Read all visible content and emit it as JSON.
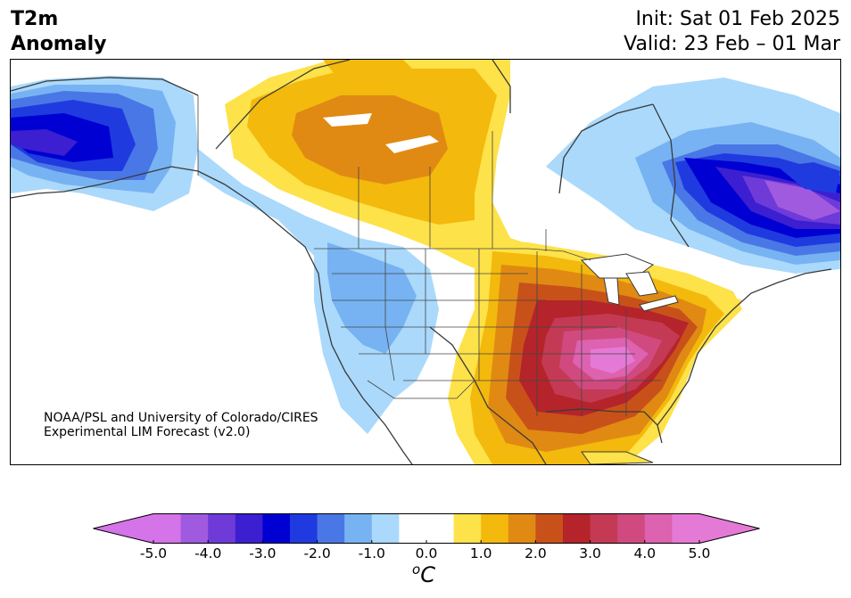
{
  "header": {
    "title_line1": "T2m",
    "title_line2": "Anomaly",
    "init_label": "Init: Sat 01 Feb 2025",
    "valid_label": "Valid: 23 Feb – 01 Mar"
  },
  "credit": {
    "line1": "NOAA/PSL and University of Colorado/CIRES",
    "line2": "Experimental LIM Forecast (v2.0)"
  },
  "colorbar": {
    "unit_base": "C",
    "unit_sup": "o",
    "ticks": [
      "-5.0",
      "-4.0",
      "-3.0",
      "-2.0",
      "-1.0",
      "0.0",
      "1.0",
      "2.0",
      "3.0",
      "4.0",
      "5.0"
    ],
    "colors": [
      "#d573e8",
      "#a05ae0",
      "#6e3bd9",
      "#3b1fd1",
      "#0000d2",
      "#1f3be0",
      "#4a77e6",
      "#77b3f2",
      "#aad9fb",
      "#ffffff",
      "#ffffff",
      "#fde249",
      "#f3b90c",
      "#e08a13",
      "#c8511a",
      "#b5242a",
      "#c43a55",
      "#d04a80",
      "#dd62b0",
      "#e57ad6"
    ],
    "extend_low_color": "#d573e8",
    "extend_high_color": "#e57ad6"
  },
  "map_colors": {
    "land_neutral": "#ffffff",
    "coast": "#3a3a3a",
    "cool_1": "#aad9fb",
    "cool_2": "#77b3f2",
    "cool_3": "#4a77e6",
    "cool_4": "#1f3be0",
    "cool_5": "#0000d2",
    "cool_6": "#3b1fd1",
    "cool_7": "#6e3bd9",
    "cool_8": "#a05ae0",
    "cool_9": "#d573e8",
    "warm_1": "#fde249",
    "warm_2": "#f3b90c",
    "warm_3": "#e08a13",
    "warm_4": "#c8511a",
    "warm_5": "#b5242a",
    "warm_6": "#c43a55",
    "warm_7": "#d04a80",
    "warm_8": "#dd62b0",
    "warm_9": "#e57ad6"
  }
}
